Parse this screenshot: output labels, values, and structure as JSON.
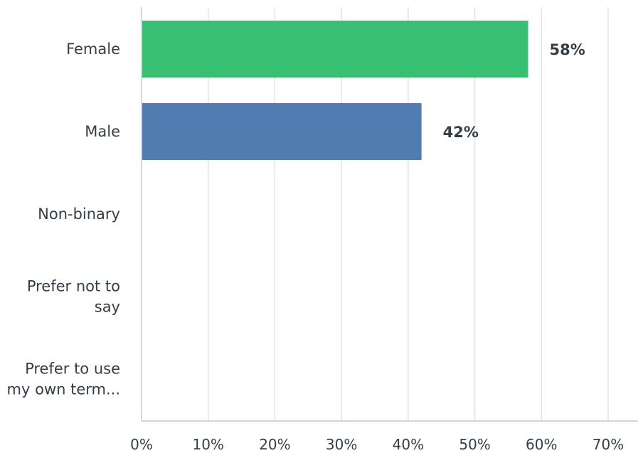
{
  "chart_data": {
    "type": "bar",
    "orientation": "horizontal",
    "categories": [
      [
        "Female"
      ],
      [
        "Male"
      ],
      [
        "Non-binary"
      ],
      [
        "Prefer not to",
        "say"
      ],
      [
        "Prefer to use",
        "my own term..."
      ]
    ],
    "values": [
      58,
      42,
      0,
      0,
      0
    ],
    "data_labels": [
      "58%",
      "42%",
      "",
      "",
      ""
    ],
    "colors": [
      "#38bf74",
      "#517cb2",
      "#517cb2",
      "#517cb2",
      "#517cb2"
    ],
    "xlim": [
      0,
      70
    ],
    "x_ticks": [
      0,
      10,
      20,
      30,
      40,
      50,
      60,
      70
    ],
    "x_tick_labels": [
      "0%",
      "10%",
      "20%",
      "30%",
      "40%",
      "50%",
      "60%",
      "70%"
    ],
    "grid": true,
    "title": "",
    "xlabel": "",
    "ylabel": ""
  }
}
